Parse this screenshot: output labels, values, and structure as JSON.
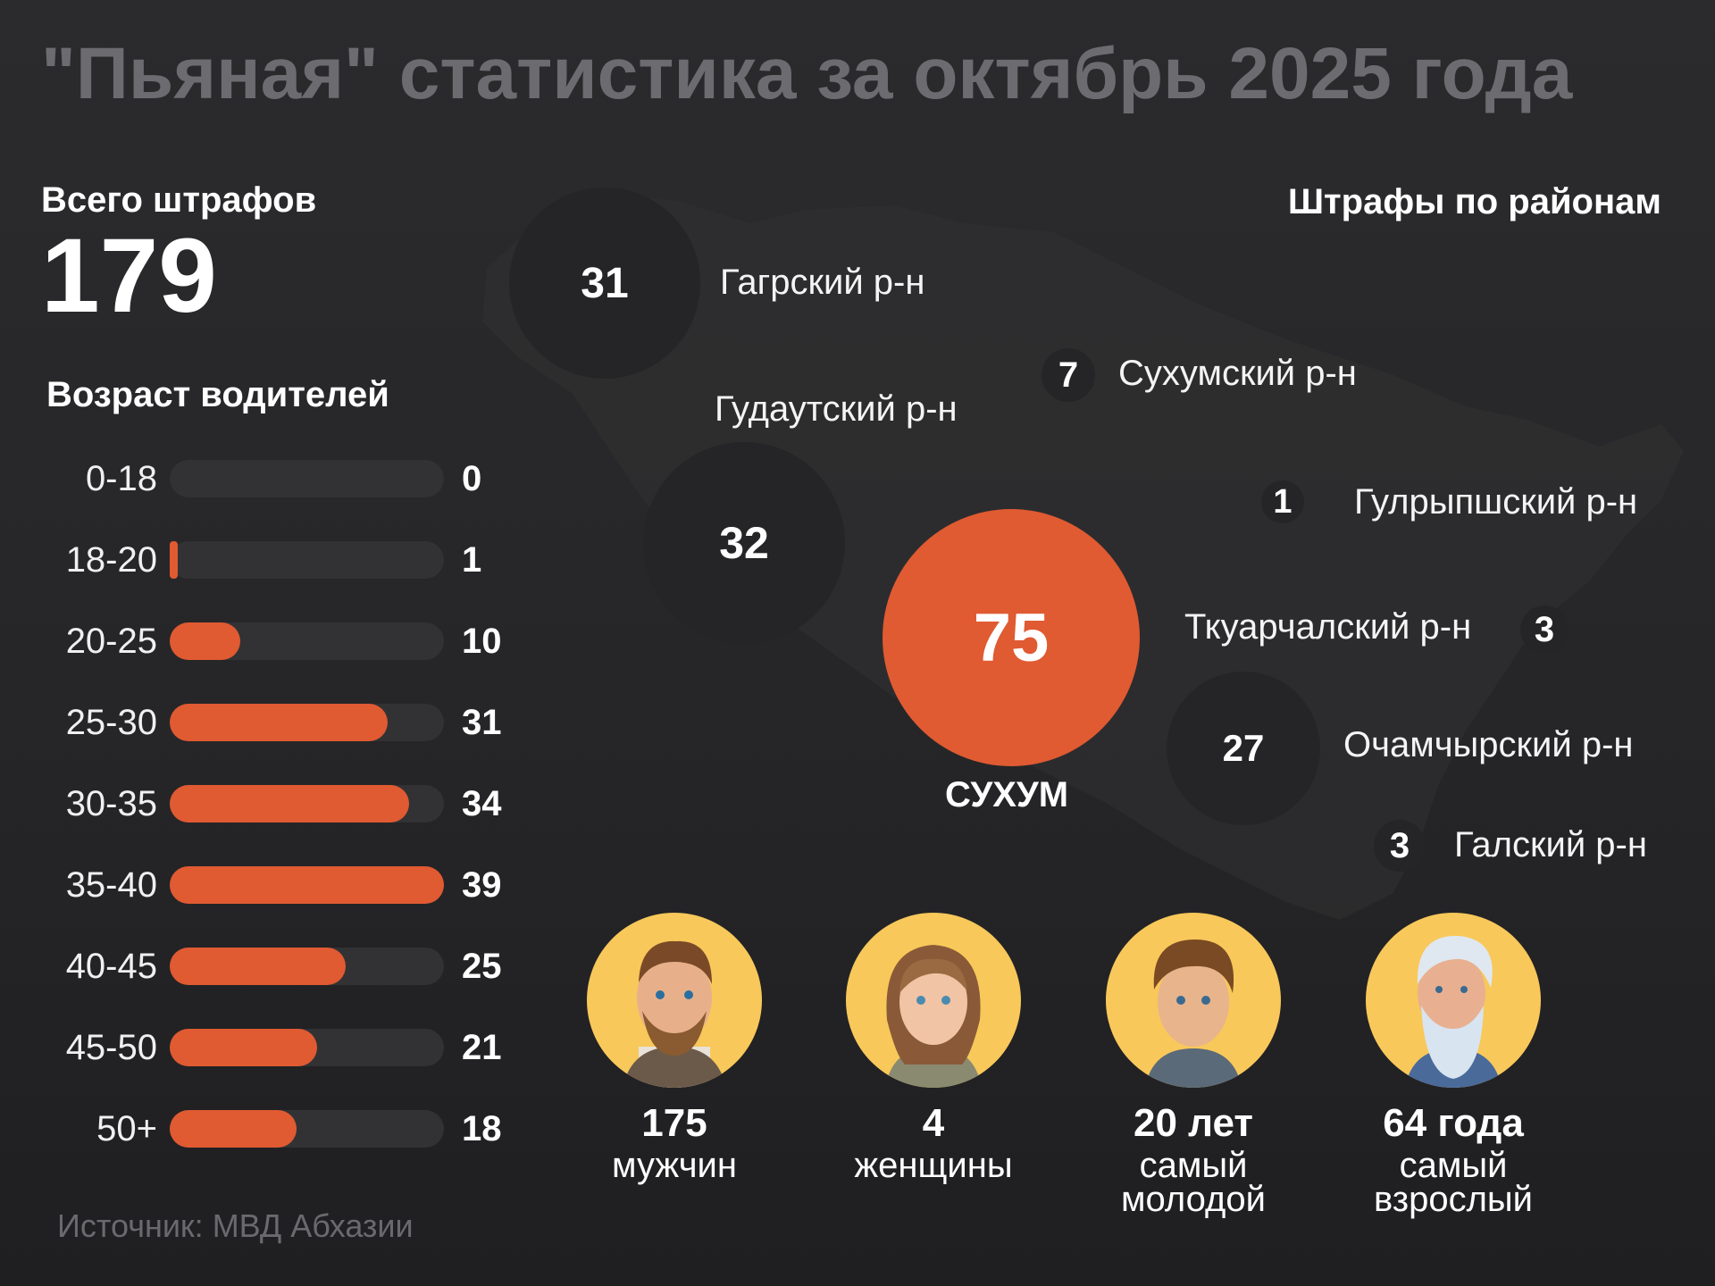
{
  "title": "\"Пьяная\" статистика за октябрь 2025 года",
  "total": {
    "label": "Всего штрафов",
    "value": "179"
  },
  "age": {
    "title": "Возраст водителей"
  },
  "districts": {
    "title": "Штрафы по районам",
    "items": [
      {
        "name": "Гагрский р-н",
        "value": 31
      },
      {
        "name": "Сухумский р-н",
        "value": 7
      },
      {
        "name": "Гудаутский р-н",
        "value": 32
      },
      {
        "name": "Гулрыпшский р-н",
        "value": 1
      },
      {
        "name": "СУХУМ",
        "value": 75
      },
      {
        "name": "Ткуарчалский р-н",
        "value": 3
      },
      {
        "name": "Очамчырский р-н",
        "value": 27
      },
      {
        "name": "Галский р-н",
        "value": 3
      }
    ]
  },
  "people": [
    {
      "number": "175",
      "text": "мужчин",
      "icon": "man-avatar-icon"
    },
    {
      "number": "4",
      "text": "женщины",
      "icon": "woman-avatar-icon"
    },
    {
      "number": "20 лет",
      "text": "самый молодой",
      "icon": "young-man-avatar-icon"
    },
    {
      "number": "64 года",
      "text": "самый взрослый",
      "icon": "old-man-avatar-icon"
    }
  ],
  "source": "Источник: МВД Абхазии",
  "colors": {
    "accent": "#e05a32",
    "bubble": "#252527",
    "avatar_bg": "#f8c85a"
  },
  "chart_data": {
    "type": "bar",
    "orientation": "horizontal",
    "title": "Возраст водителей",
    "categories": [
      "0-18",
      "18-20",
      "20-25",
      "25-30",
      "30-35",
      "35-40",
      "40-45",
      "45-50",
      "50+"
    ],
    "values": [
      0,
      1,
      10,
      31,
      34,
      39,
      25,
      21,
      18
    ],
    "xlim": [
      0,
      39
    ]
  }
}
